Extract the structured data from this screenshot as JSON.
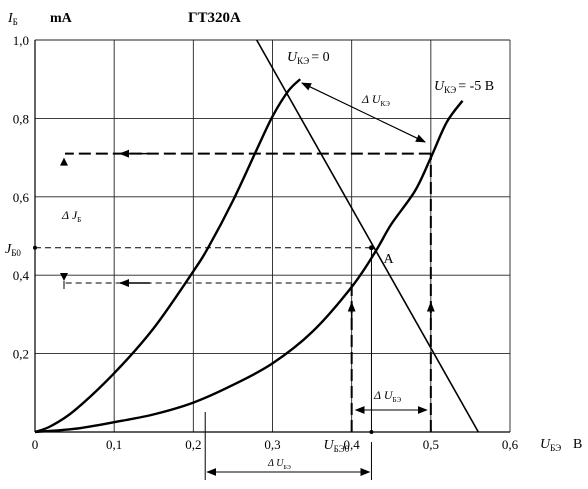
{
  "chart_data": {
    "type": "line",
    "title": "ГТ320А",
    "ylabel": {
      "main": "I",
      "sub": "Б",
      "unit": "mA"
    },
    "xlabel": {
      "main": "U",
      "sub": "БЭ",
      "unit": "В"
    },
    "xlim": [
      0,
      0.6
    ],
    "ylim": [
      0,
      1.0
    ],
    "xticks": [
      0,
      0.1,
      0.2,
      0.3,
      0.4,
      0.5,
      0.6
    ],
    "xtick_labels": [
      "0",
      "0,1",
      "0,2",
      "0,3",
      "0,4",
      "0,5",
      "0,6"
    ],
    "yticks": [
      0.2,
      0.4,
      0.6,
      0.8,
      1.0
    ],
    "ytick_labels": [
      "0,2",
      "0,4",
      "0,6",
      "0,8",
      "1,0"
    ],
    "grid": true,
    "series": [
      {
        "name_main": "U",
        "name_sub": "КЭ",
        "name_value": "= 0",
        "points": [
          [
            0,
            0
          ],
          [
            0.02,
            0.015
          ],
          [
            0.05,
            0.055
          ],
          [
            0.1,
            0.15
          ],
          [
            0.15,
            0.265
          ],
          [
            0.2,
            0.41
          ],
          [
            0.22,
            0.475
          ],
          [
            0.25,
            0.59
          ],
          [
            0.28,
            0.72
          ],
          [
            0.3,
            0.805
          ],
          [
            0.32,
            0.87
          ],
          [
            0.335,
            0.9
          ]
        ]
      },
      {
        "name_main": "U",
        "name_sub": "КЭ",
        "name_value": "= -5 В",
        "points": [
          [
            0,
            0
          ],
          [
            0.05,
            0.008
          ],
          [
            0.1,
            0.025
          ],
          [
            0.15,
            0.045
          ],
          [
            0.2,
            0.075
          ],
          [
            0.25,
            0.12
          ],
          [
            0.3,
            0.175
          ],
          [
            0.35,
            0.255
          ],
          [
            0.4,
            0.37
          ],
          [
            0.43,
            0.46
          ],
          [
            0.45,
            0.53
          ],
          [
            0.48,
            0.615
          ],
          [
            0.5,
            0.7
          ],
          [
            0.52,
            0.79
          ],
          [
            0.54,
            0.845
          ]
        ]
      }
    ],
    "load_line": {
      "points": [
        [
          0.28,
          1.0
        ],
        [
          0.56,
          0.0
        ]
      ]
    },
    "operating_point": {
      "label": "A",
      "x": 0.425,
      "y": 0.47,
      "x_label_main": "U",
      "x_label_sub": "БЭ0",
      "y_label_main": "J",
      "y_label_sub": "Б0"
    },
    "delta_ib": {
      "label_main": "Δ J",
      "label_sub": "Б",
      "upper": 0.71,
      "lower": 0.38
    },
    "delta_ube": {
      "label_main": "Δ U",
      "label_sub": "БЭ",
      "from": 0.4,
      "to": 0.5
    },
    "delta_ube_bottom": {
      "label_main": "Δ U",
      "label_sub": "БЭ",
      "from": 0.215,
      "to": 0.425
    },
    "delta_uke": {
      "label_main": "Δ U",
      "label_sub": "КЭ"
    }
  }
}
